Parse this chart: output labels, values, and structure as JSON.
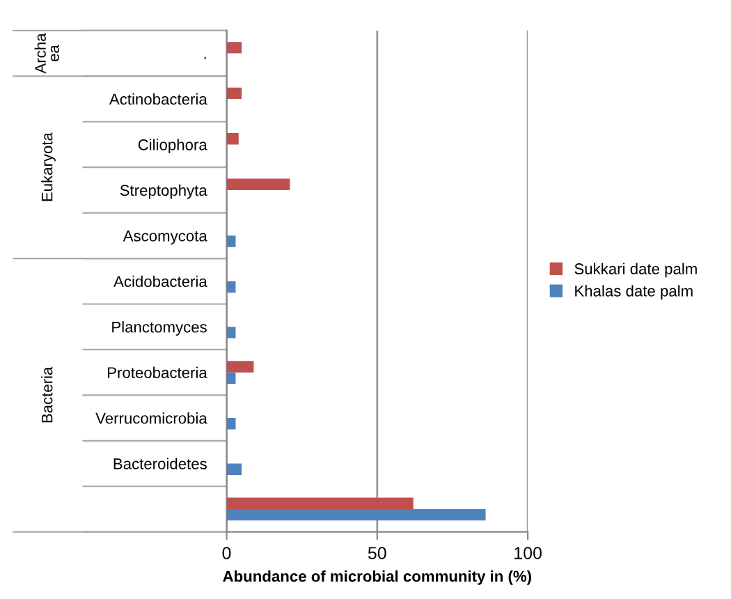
{
  "chart_data": {
    "type": "bar",
    "orientation": "horizontal",
    "xlabel": "Abundance of microbial community in (%)",
    "categories": [
      ".",
      "Actinobacteria",
      "Ciliophora",
      "Streptophyta",
      "Ascomycota",
      "Acidobacteria",
      "Planctomyces",
      "Proteobacteria",
      "Verrucomicrobia",
      "Bacteroidetes",
      null
    ],
    "series": [
      {
        "name": "Sukkari date palm",
        "color": "#c0504d",
        "values": [
          5,
          5,
          4,
          21,
          null,
          null,
          null,
          9,
          null,
          null,
          62
        ]
      },
      {
        "name": "Khalas date palm",
        "color": "#4f81bd",
        "values": [
          null,
          null,
          null,
          null,
          3,
          3,
          3,
          3,
          3,
          5,
          86
        ]
      }
    ],
    "annotations": [
      "Archa\nea",
      "Eukaryota",
      "Bacteria"
    ],
    "xlim": [
      0,
      100
    ],
    "xticks": [
      0,
      50,
      100
    ],
    "grid": "x",
    "legend": "right"
  }
}
